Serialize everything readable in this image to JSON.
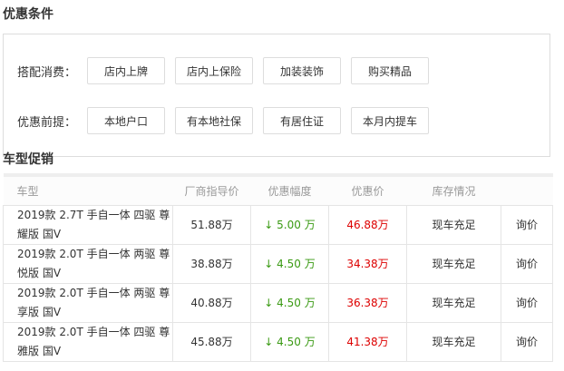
{
  "conditions": {
    "title": "优惠条件",
    "rows": [
      {
        "label": "搭配消费：",
        "items": [
          "店内上牌",
          "店内上保险",
          "加装装饰",
          "购买精品"
        ]
      },
      {
        "label": "优惠前提：",
        "items": [
          "本地户口",
          "有本地社保",
          "有居住证",
          "本月内提车"
        ]
      }
    ]
  },
  "promo": {
    "title": "车型促销",
    "headers": [
      "车型",
      "厂商指导价",
      "优惠幅度",
      "优惠价",
      "库存情况",
      ""
    ],
    "rows": [
      {
        "model": "2019款 2.7T 手自一体 四驱 尊耀版 国V",
        "msrp": "51.88万",
        "discount": "↓ 5.00 万",
        "price": "46.88万",
        "stock": "现车充足",
        "action": "询价"
      },
      {
        "model": "2019款 2.0T 手自一体 两驱 尊悦版 国V",
        "msrp": "38.88万",
        "discount": "↓ 4.50 万",
        "price": "34.38万",
        "stock": "现车充足",
        "action": "询价"
      },
      {
        "model": "2019款 2.0T 手自一体 两驱 尊享版 国V",
        "msrp": "40.88万",
        "discount": "↓ 4.50 万",
        "price": "36.38万",
        "stock": "现车充足",
        "action": "询价"
      },
      {
        "model": "2019款 2.0T 手自一体 四驱 尊雅版 国V",
        "msrp": "45.88万",
        "discount": "↓ 4.50 万",
        "price": "41.38万",
        "stock": "现车充足",
        "action": "询价"
      }
    ]
  },
  "colors": {
    "discount": "#3a9a13",
    "price": "#dd0000"
  }
}
